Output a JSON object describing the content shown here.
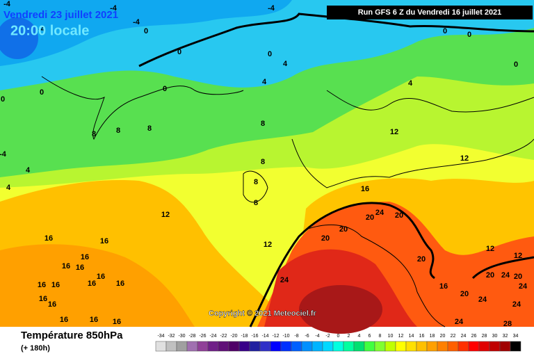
{
  "header": {
    "date": "Vendredi 23 juillet 2021",
    "time": "20:00 locale",
    "run": "Run GFS 6 Z du Vendredi 16 juillet 2021"
  },
  "copyright": "Copyright © 2021 Meteociel.fr",
  "legend": {
    "title": "Température 850hPa",
    "subtitle": "(+ 180h)",
    "levels": [
      -34,
      -32,
      -30,
      -28,
      -26,
      -24,
      -22,
      -20,
      -18,
      -16,
      -14,
      -12,
      -10,
      -8,
      -6,
      -4,
      -2,
      0,
      2,
      4,
      6,
      8,
      10,
      12,
      14,
      16,
      18,
      20,
      22,
      24,
      26,
      28,
      30,
      32,
      34
    ],
    "colors": [
      "#e0e0e0",
      "#c0c0c0",
      "#a0a0a0",
      "#a070b0",
      "#904098",
      "#702088",
      "#601078",
      "#500068",
      "#380088",
      "#2020a0",
      "#3030c8",
      "#0000ff",
      "#0030ff",
      "#0060ff",
      "#0090ff",
      "#00b4ff",
      "#00d8ff",
      "#00ffe0",
      "#00ffa0",
      "#00e070",
      "#40ff40",
      "#80ff30",
      "#c0ff00",
      "#ffff00",
      "#ffe000",
      "#ffc000",
      "#ffa000",
      "#ff8000",
      "#ff6000",
      "#ff3000",
      "#ff0000",
      "#e00000",
      "#c00000",
      "#a00000",
      "#000000"
    ]
  },
  "map_labels": [
    -4,
    -4,
    -4,
    -4,
    -4,
    0,
    0,
    0,
    0,
    0,
    0,
    0,
    0,
    0,
    4,
    4,
    4,
    8,
    8,
    8,
    8,
    8,
    8,
    8,
    -4,
    4,
    4,
    12,
    12,
    12,
    12,
    12,
    12,
    16,
    16,
    16,
    16,
    16,
    16,
    16,
    16,
    16,
    16,
    16,
    16,
    16,
    16,
    16,
    16,
    16,
    20,
    20,
    20,
    20,
    20,
    20,
    20,
    20,
    24,
    24,
    24,
    24,
    24,
    24,
    24,
    28
  ]
}
